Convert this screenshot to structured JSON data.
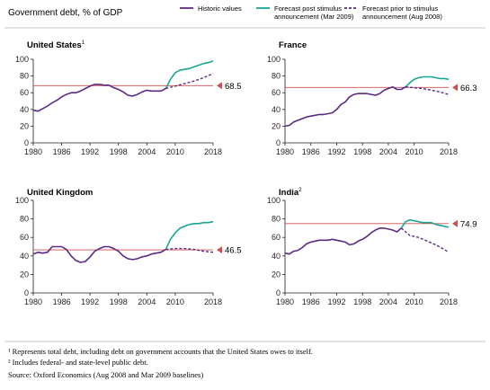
{
  "title": "Government debt, % of GDP",
  "legend": [
    {
      "label_lines": [
        "Historic values"
      ],
      "style": "historic"
    },
    {
      "label_lines": [
        "Forecast post stimulus",
        "announcement (Mar 2009)"
      ],
      "style": "post"
    },
    {
      "label_lines": [
        "Forecast prior to stimulus",
        "announcement (Aug 2008)"
      ],
      "style": "prior"
    }
  ],
  "colors": {
    "historic": "#5b2a86",
    "post": "#1aa694",
    "prior": "#5b2a86",
    "reference": "#c8504e",
    "axis": "#231f20"
  },
  "footnotes": [
    "¹ Represents total debt, including debt on government accounts that the United States owes to itself.",
    "² Includes federal- and state-level public debt.",
    "Source: Oxford Economics (Aug 2008 and Mar 2009 baselines)"
  ],
  "chart_data": [
    {
      "type": "line",
      "title": "United States",
      "title_sup": "1",
      "xlim": [
        1980,
        2018
      ],
      "ylim": [
        0,
        100
      ],
      "xticks": [
        1980,
        1986,
        1992,
        1998,
        2004,
        2010,
        2018
      ],
      "yticks": [
        0,
        20,
        40,
        60,
        80,
        100
      ],
      "reference_value": 68.5,
      "reference_label": "68.5",
      "series": [
        {
          "style": "historic",
          "points": [
            [
              1980,
              39
            ],
            [
              1981,
              38
            ],
            [
              1982,
              41
            ],
            [
              1983,
              44
            ],
            [
              1984,
              48
            ],
            [
              1985,
              51
            ],
            [
              1986,
              55
            ],
            [
              1987,
              58
            ],
            [
              1988,
              60
            ],
            [
              1989,
              60
            ],
            [
              1990,
              62
            ],
            [
              1991,
              65
            ],
            [
              1992,
              68
            ],
            [
              1993,
              70
            ],
            [
              1994,
              70
            ],
            [
              1995,
              69
            ],
            [
              1996,
              69
            ],
            [
              1997,
              66
            ],
            [
              1998,
              64
            ],
            [
              1999,
              61
            ],
            [
              2000,
              57
            ],
            [
              2001,
              56
            ],
            [
              2002,
              58
            ],
            [
              2003,
              61
            ],
            [
              2004,
              63
            ],
            [
              2005,
              62
            ],
            [
              2006,
              62
            ],
            [
              2007,
              62
            ],
            [
              2008,
              65
            ]
          ]
        },
        {
          "style": "post",
          "points": [
            [
              2008,
              65
            ],
            [
              2009,
              76
            ],
            [
              2010,
              84
            ],
            [
              2011,
              87
            ],
            [
              2012,
              88
            ],
            [
              2013,
              89
            ],
            [
              2014,
              91
            ],
            [
              2015,
              93
            ],
            [
              2016,
              95
            ],
            [
              2017,
              96
            ],
            [
              2018,
              98
            ]
          ]
        },
        {
          "style": "prior",
          "points": [
            [
              2008,
              65
            ],
            [
              2010,
              68
            ],
            [
              2012,
              71
            ],
            [
              2014,
              74
            ],
            [
              2016,
              78
            ],
            [
              2018,
              83
            ]
          ]
        }
      ]
    },
    {
      "type": "line",
      "title": "France",
      "title_sup": "",
      "xlim": [
        1980,
        2018
      ],
      "ylim": [
        0,
        100
      ],
      "xticks": [
        1980,
        1986,
        1992,
        1998,
        2004,
        2010,
        2018
      ],
      "yticks": [
        0,
        20,
        40,
        60,
        80,
        100
      ],
      "reference_value": 66.3,
      "reference_label": "66.3",
      "series": [
        {
          "style": "historic",
          "points": [
            [
              1980,
              20
            ],
            [
              1981,
              21
            ],
            [
              1982,
              25
            ],
            [
              1983,
              27
            ],
            [
              1984,
              29
            ],
            [
              1985,
              31
            ],
            [
              1986,
              32
            ],
            [
              1987,
              33
            ],
            [
              1988,
              34
            ],
            [
              1989,
              34
            ],
            [
              1990,
              35
            ],
            [
              1991,
              36
            ],
            [
              1992,
              40
            ],
            [
              1993,
              46
            ],
            [
              1994,
              49
            ],
            [
              1995,
              55
            ],
            [
              1996,
              58
            ],
            [
              1997,
              59
            ],
            [
              1998,
              59
            ],
            [
              1999,
              59
            ],
            [
              2000,
              58
            ],
            [
              2001,
              57
            ],
            [
              2002,
              59
            ],
            [
              2003,
              63
            ],
            [
              2004,
              65
            ],
            [
              2005,
              67
            ],
            [
              2006,
              64
            ],
            [
              2007,
              64
            ],
            [
              2008,
              67
            ]
          ]
        },
        {
          "style": "post",
          "points": [
            [
              2008,
              67
            ],
            [
              2009,
              72
            ],
            [
              2010,
              76
            ],
            [
              2011,
              78
            ],
            [
              2012,
              79
            ],
            [
              2013,
              79
            ],
            [
              2014,
              79
            ],
            [
              2015,
              78
            ],
            [
              2016,
              77
            ],
            [
              2017,
              77
            ],
            [
              2018,
              76
            ]
          ]
        },
        {
          "style": "prior",
          "points": [
            [
              2008,
              67
            ],
            [
              2010,
              66
            ],
            [
              2012,
              65
            ],
            [
              2014,
              63
            ],
            [
              2016,
              61
            ],
            [
              2018,
              58
            ]
          ]
        }
      ]
    },
    {
      "type": "line",
      "title": "United Kingdom",
      "title_sup": "",
      "xlim": [
        1980,
        2018
      ],
      "ylim": [
        0,
        100
      ],
      "xticks": [
        1980,
        1986,
        1992,
        1998,
        2004,
        2010,
        2018
      ],
      "yticks": [
        0,
        20,
        40,
        60,
        80,
        100
      ],
      "reference_value": 46.5,
      "reference_label": "46.5",
      "series": [
        {
          "style": "historic",
          "points": [
            [
              1980,
              42
            ],
            [
              1981,
              44
            ],
            [
              1982,
              43
            ],
            [
              1983,
              44
            ],
            [
              1984,
              50
            ],
            [
              1985,
              50
            ],
            [
              1986,
              50
            ],
            [
              1987,
              47
            ],
            [
              1988,
              40
            ],
            [
              1989,
              35
            ],
            [
              1990,
              33
            ],
            [
              1991,
              34
            ],
            [
              1992,
              39
            ],
            [
              1993,
              45
            ],
            [
              1994,
              48
            ],
            [
              1995,
              50
            ],
            [
              1996,
              50
            ],
            [
              1997,
              48
            ],
            [
              1998,
              45
            ],
            [
              1999,
              40
            ],
            [
              2000,
              37
            ],
            [
              2001,
              36
            ],
            [
              2002,
              37
            ],
            [
              2003,
              39
            ],
            [
              2004,
              40
            ],
            [
              2005,
              42
            ],
            [
              2006,
              43
            ],
            [
              2007,
              44
            ],
            [
              2008,
              47
            ]
          ]
        },
        {
          "style": "post",
          "points": [
            [
              2008,
              47
            ],
            [
              2009,
              58
            ],
            [
              2010,
              65
            ],
            [
              2011,
              70
            ],
            [
              2012,
              72
            ],
            [
              2013,
              74
            ],
            [
              2014,
              75
            ],
            [
              2015,
              75
            ],
            [
              2016,
              76
            ],
            [
              2017,
              76
            ],
            [
              2018,
              77
            ]
          ]
        },
        {
          "style": "prior",
          "points": [
            [
              2008,
              47
            ],
            [
              2010,
              48
            ],
            [
              2012,
              48
            ],
            [
              2014,
              47
            ],
            [
              2016,
              45
            ],
            [
              2018,
              44
            ]
          ]
        }
      ]
    },
    {
      "type": "line",
      "title": "India",
      "title_sup": "2",
      "xlim": [
        1980,
        2018
      ],
      "ylim": [
        0,
        100
      ],
      "xticks": [
        1980,
        1986,
        1992,
        1998,
        2004,
        2010,
        2018
      ],
      "yticks": [
        0,
        20,
        40,
        60,
        80,
        100
      ],
      "reference_value": 74.9,
      "reference_label": "74.9",
      "series": [
        {
          "style": "historic",
          "points": [
            [
              1980,
              43
            ],
            [
              1981,
              42
            ],
            [
              1982,
              45
            ],
            [
              1983,
              46
            ],
            [
              1984,
              49
            ],
            [
              1985,
              53
            ],
            [
              1986,
              55
            ],
            [
              1987,
              56
            ],
            [
              1988,
              57
            ],
            [
              1989,
              57
            ],
            [
              1990,
              57
            ],
            [
              1991,
              58
            ],
            [
              1992,
              57
            ],
            [
              1993,
              56
            ],
            [
              1994,
              55
            ],
            [
              1995,
              52
            ],
            [
              1996,
              53
            ],
            [
              1997,
              56
            ],
            [
              1998,
              58
            ],
            [
              1999,
              61
            ],
            [
              2000,
              65
            ],
            [
              2001,
              68
            ],
            [
              2002,
              70
            ],
            [
              2003,
              70
            ],
            [
              2004,
              69
            ],
            [
              2005,
              68
            ],
            [
              2006,
              66
            ],
            [
              2007,
              70
            ]
          ]
        },
        {
          "style": "post",
          "points": [
            [
              2007,
              70
            ],
            [
              2008,
              77
            ],
            [
              2009,
              79
            ],
            [
              2010,
              78
            ],
            [
              2011,
              77
            ],
            [
              2012,
              76
            ],
            [
              2013,
              76
            ],
            [
              2014,
              76
            ],
            [
              2015,
              74
            ],
            [
              2016,
              73
            ],
            [
              2017,
              72
            ],
            [
              2018,
              71
            ]
          ]
        },
        {
          "style": "prior",
          "points": [
            [
              2007,
              70
            ],
            [
              2009,
              62
            ],
            [
              2011,
              60
            ],
            [
              2013,
              56
            ],
            [
              2015,
              52
            ],
            [
              2017,
              47
            ],
            [
              2018,
              44
            ]
          ]
        }
      ]
    }
  ]
}
